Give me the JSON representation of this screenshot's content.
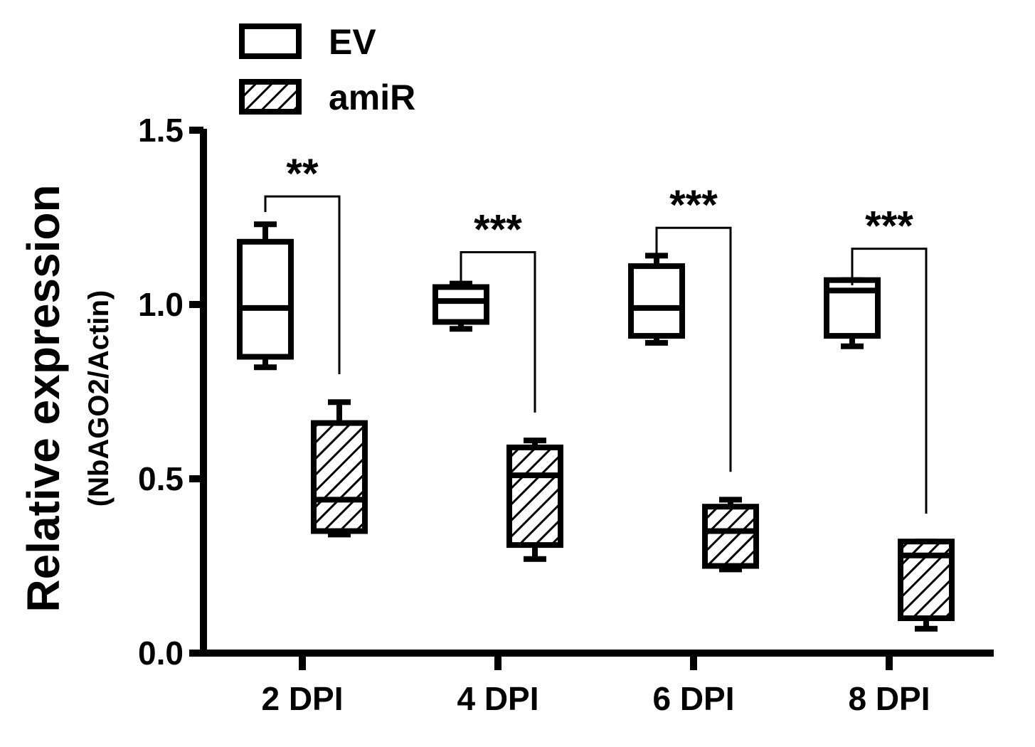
{
  "chart_data": {
    "type": "box",
    "title": "",
    "ylabel": "Relative expression",
    "ylabel_sub": "(NbAGO2/Actin)",
    "xlabel": "",
    "ylim": [
      0,
      1.5
    ],
    "yticks": [
      "0.0",
      "0.5",
      "1.0",
      "1.5"
    ],
    "yticks_values": [
      0,
      0.5,
      1.0,
      1.5
    ],
    "categories": [
      "2 DPI",
      "4 DPI",
      "6 DPI",
      "8 DPI"
    ],
    "legend": {
      "position": "top-left"
    },
    "series": [
      {
        "name": "EV",
        "fill": "none",
        "boxes": [
          {
            "min": 0.82,
            "q1": 0.85,
            "median": 0.99,
            "q3": 1.18,
            "max": 1.23
          },
          {
            "min": 0.93,
            "q1": 0.95,
            "median": 1.01,
            "q3": 1.05,
            "max": 1.06
          },
          {
            "min": 0.89,
            "q1": 0.91,
            "median": 0.99,
            "q3": 1.11,
            "max": 1.14
          },
          {
            "min": 0.88,
            "q1": 0.91,
            "median": 1.04,
            "q3": 1.07,
            "max": 1.07
          }
        ]
      },
      {
        "name": "amiR",
        "fill": "hatched",
        "boxes": [
          {
            "min": 0.34,
            "q1": 0.35,
            "median": 0.44,
            "q3": 0.66,
            "max": 0.72
          },
          {
            "min": 0.27,
            "q1": 0.31,
            "median": 0.51,
            "q3": 0.59,
            "max": 0.61
          },
          {
            "min": 0.24,
            "q1": 0.25,
            "median": 0.35,
            "q3": 0.42,
            "max": 0.44
          },
          {
            "min": 0.07,
            "q1": 0.1,
            "median": 0.28,
            "q3": 0.32,
            "max": 0.32
          }
        ]
      }
    ],
    "significance": [
      {
        "category": "2 DPI",
        "label": "**",
        "y_left": 1.31,
        "y_right": 0.8,
        "y_top": 1.31
      },
      {
        "category": "4 DPI",
        "label": "***",
        "y_left": 1.1,
        "y_right": 0.69,
        "y_top": 1.15
      },
      {
        "category": "6 DPI",
        "label": "***",
        "y_left": 1.18,
        "y_right": 0.52,
        "y_top": 1.22
      },
      {
        "category": "8 DPI",
        "label": "***",
        "y_left": 1.1,
        "y_right": 0.4,
        "y_top": 1.16
      }
    ]
  }
}
